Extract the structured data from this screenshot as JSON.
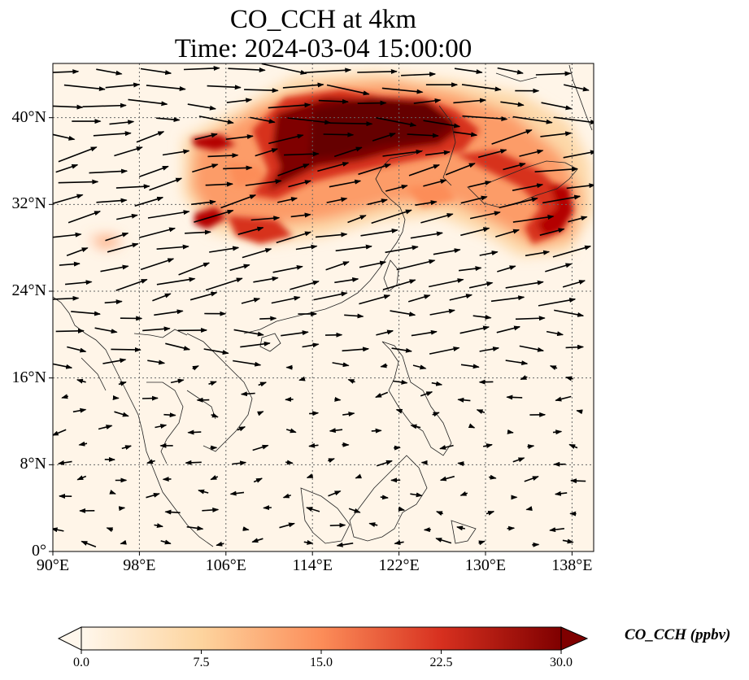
{
  "title": {
    "line1": "CO_CCH at 4km",
    "line2": "Time: 2024-03-04 15:00:00"
  },
  "map": {
    "lon_range": [
      90,
      140
    ],
    "lat_range": [
      0,
      45
    ],
    "lat_ticks": [
      {
        "value": 40,
        "label": "40°N"
      },
      {
        "value": 32,
        "label": "32°N"
      },
      {
        "value": 24,
        "label": "24°N"
      },
      {
        "value": 16,
        "label": "16°N"
      },
      {
        "value": 8,
        "label": "8°N"
      },
      {
        "value": 0,
        "label": "0°"
      }
    ],
    "lon_ticks": [
      {
        "value": 90,
        "label": "90°E"
      },
      {
        "value": 98,
        "label": "98°E"
      },
      {
        "value": 106,
        "label": "106°E"
      },
      {
        "value": 114,
        "label": "114°E"
      },
      {
        "value": 122,
        "label": "122°E"
      },
      {
        "value": 130,
        "label": "130°E"
      },
      {
        "value": 138,
        "label": "138°E"
      }
    ],
    "gridlines": "dotted",
    "field_variable": "CO_CCH",
    "wind_vectors": "shown"
  },
  "colorbar": {
    "label": "CO_CCH (ppbv)",
    "colormap": "OrRd",
    "range": [
      0,
      30
    ],
    "extend": "both",
    "ticks": [
      "0.0",
      "7.5",
      "15.0",
      "22.5",
      "30.0"
    ],
    "colors": [
      "#fff7ec",
      "#fdd49e",
      "#fc8d59",
      "#d7301f",
      "#7f0000"
    ]
  }
}
